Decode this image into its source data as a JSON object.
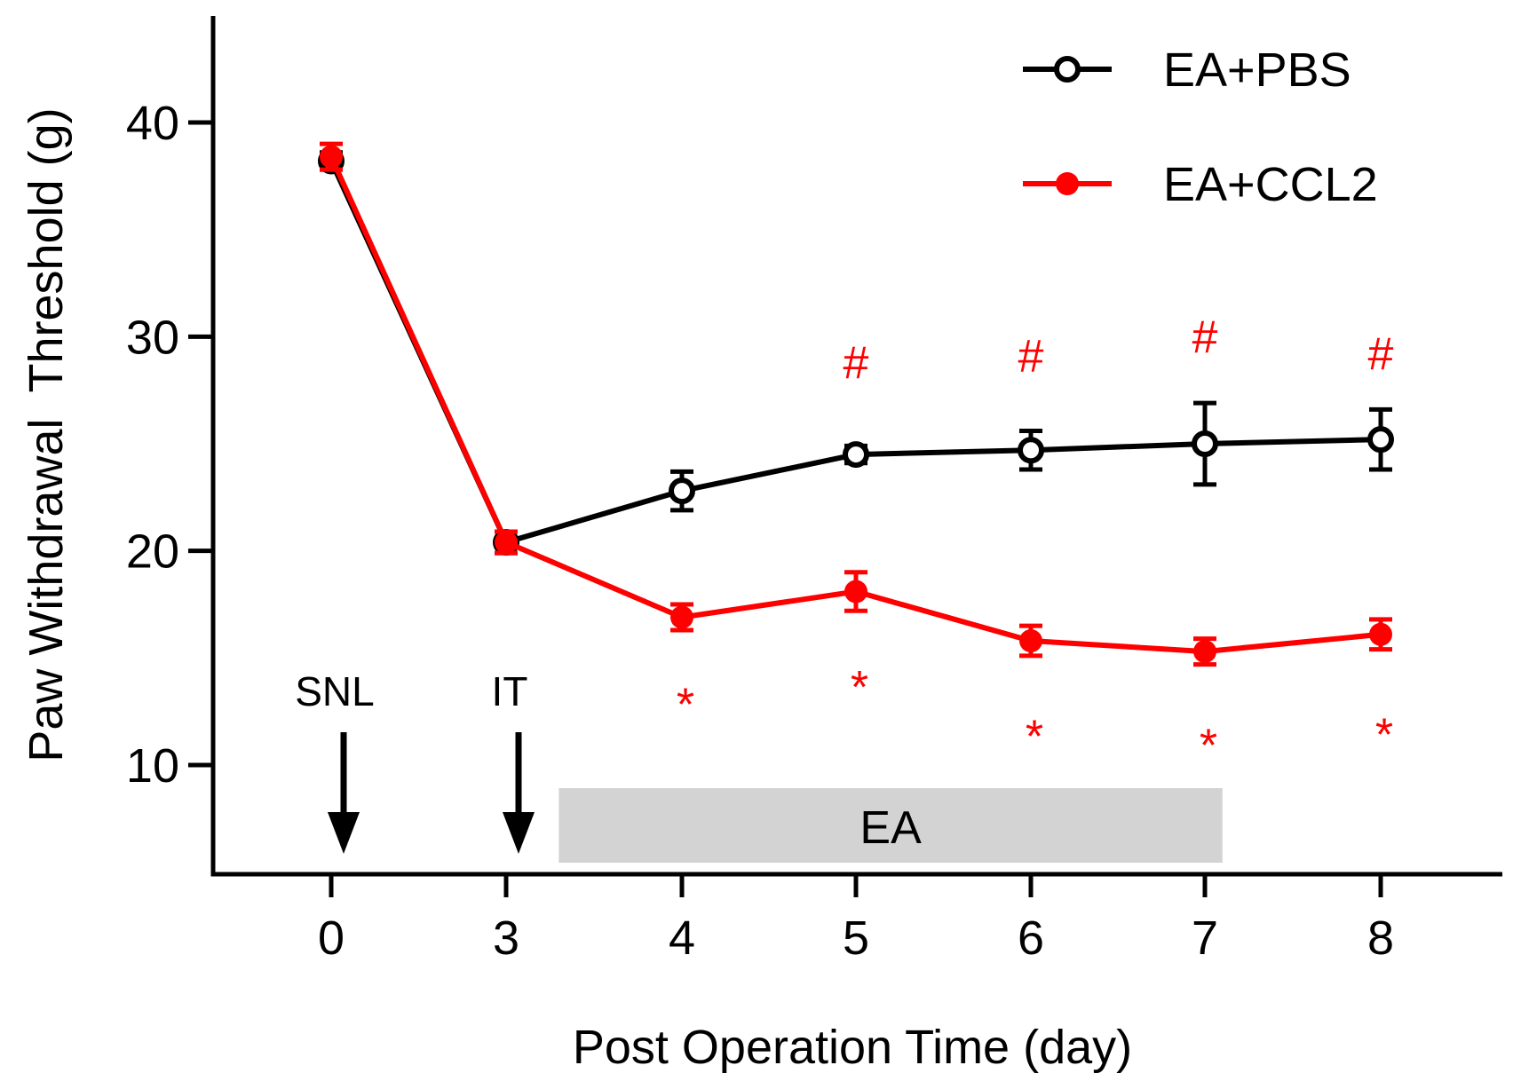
{
  "chart_data": {
    "type": "line",
    "title": "",
    "xlabel": "Post Operation Time (day)",
    "ylabel": "Paw Withdrawal  Threshold (g)",
    "x": [
      0,
      3,
      4,
      5,
      6,
      7,
      8
    ],
    "x_tick_labels": [
      "0",
      "3",
      "4",
      "5",
      "6",
      "7",
      "8"
    ],
    "y_ticks": [
      10,
      20,
      30,
      40
    ],
    "ylim": [
      5,
      45
    ],
    "grid": false,
    "legend_position": "top-right",
    "series": [
      {
        "name": "EA+PBS",
        "color": "#000000",
        "marker": "open-circle",
        "values": [
          38.2,
          20.4,
          22.8,
          24.5,
          24.7,
          25.0,
          25.2
        ],
        "errors": [
          0.4,
          0.5,
          0.9,
          0.4,
          0.9,
          1.9,
          1.4
        ]
      },
      {
        "name": "EA+CCL2",
        "color": "#ff0000",
        "marker": "filled-circle",
        "values": [
          38.4,
          20.4,
          16.9,
          18.1,
          15.8,
          15.3,
          16.1
        ],
        "errors": [
          0.6,
          0.5,
          0.6,
          0.9,
          0.7,
          0.6,
          0.7
        ]
      }
    ],
    "annotations": {
      "arrows": [
        {
          "label": "SNL",
          "x": 0
        },
        {
          "label": "IT",
          "x": 3
        }
      ],
      "treatment_bar": {
        "label": "EA",
        "x_start": 3.3,
        "x_end": 7.1,
        "color": "#d3d3d3"
      },
      "significance_above": {
        "symbol": "#",
        "color": "#ff0000",
        "x": [
          5,
          6,
          7,
          8
        ],
        "y": [
          28.8,
          29.1,
          30.0,
          29.2
        ]
      },
      "significance_below": {
        "symbol": "*",
        "color": "#ff0000",
        "x": [
          4,
          5,
          6,
          7,
          8
        ],
        "y": [
          13.5,
          14.3,
          12.0,
          11.6,
          12.1
        ]
      }
    }
  }
}
